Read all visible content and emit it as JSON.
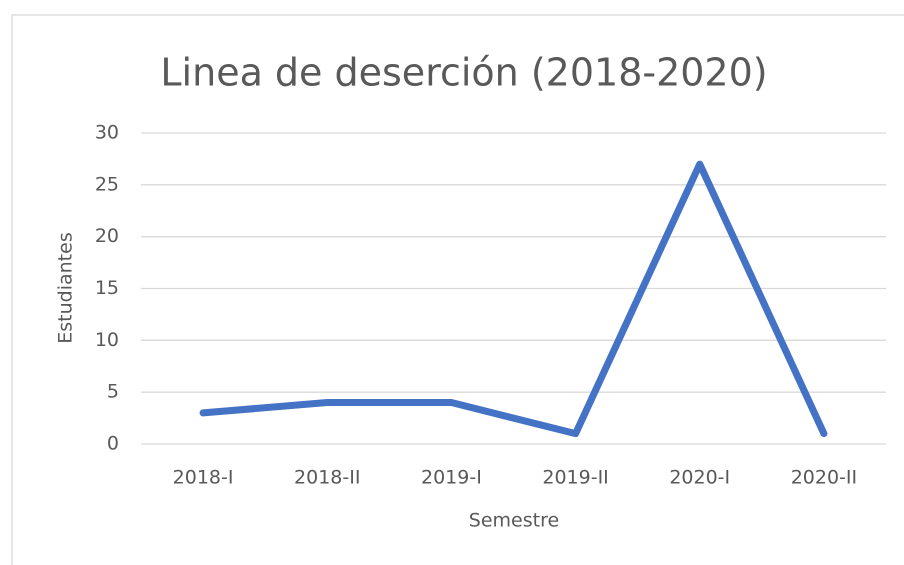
{
  "chart_data": {
    "type": "line",
    "title": "Linea de deserción (2018-2020)",
    "x_label": "Semestre",
    "y_label": "Estudiantes",
    "categories": [
      "2018-I",
      "2018-II",
      "2019-I",
      "2019-II",
      "2020-I",
      "2020-II"
    ],
    "values": [
      3,
      4,
      4,
      1,
      27,
      1
    ],
    "color": "#4472c4",
    "ylim": [
      0,
      30
    ],
    "yticks": [
      0,
      5,
      10,
      15,
      20,
      25,
      30
    ],
    "grid": true
  }
}
